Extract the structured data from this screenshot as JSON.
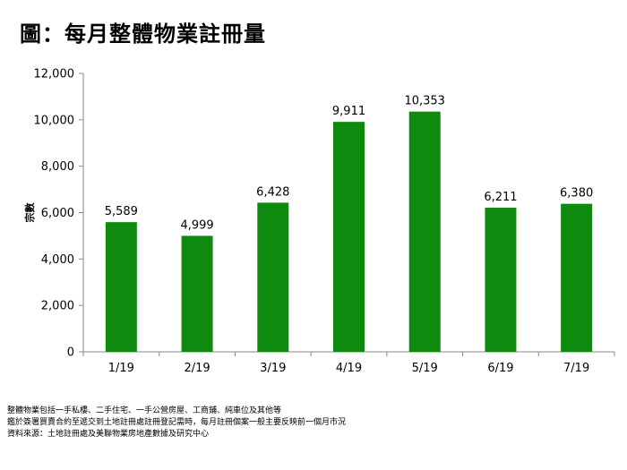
{
  "title": "圖：每月整體物業註冊量",
  "footnotes": [
    "整體物業包括一手私樓、二手住宅、一手公營房屋、工商鋪、純車位及其他等",
    "鑑於簽署買賣合約至遞交到土地註冊處註冊登記需時，每月註冊個案一般主要反映前一個月市況",
    "資料來源：土地註冊處及美聯物業房地產數據及研究中心"
  ],
  "colors": {
    "bar": "#0E8A0E",
    "axis": "#888888"
  },
  "chart_data": {
    "type": "bar",
    "title": "",
    "xlabel": "",
    "ylabel": "宗數",
    "categories": [
      "1/19",
      "2/19",
      "3/19",
      "4/19",
      "5/19",
      "6/19",
      "7/19"
    ],
    "values": [
      5589,
      4999,
      6428,
      9911,
      10353,
      6211,
      6380
    ],
    "data_labels": [
      "5,589",
      "4,999",
      "6,428",
      "9,911",
      "10,353",
      "6,211",
      "6,380"
    ],
    "ylim": [
      0,
      12000
    ],
    "yticks": [
      0,
      2000,
      4000,
      6000,
      8000,
      10000,
      12000
    ],
    "ytick_labels": [
      "0",
      "2,000",
      "4,000",
      "6,000",
      "8,000",
      "10,000",
      "12,000"
    ],
    "grid": false,
    "legend": "none"
  }
}
